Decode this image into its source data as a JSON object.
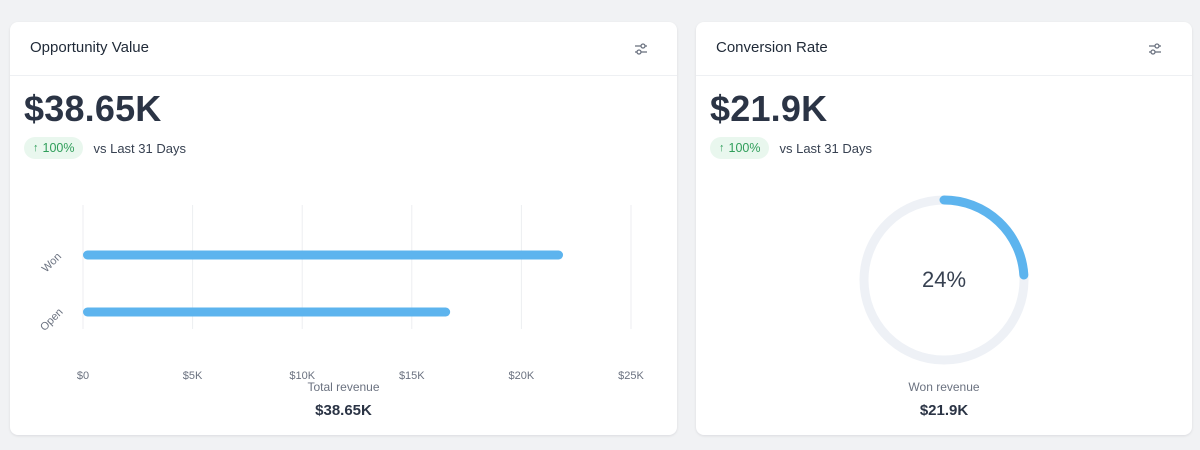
{
  "cards": {
    "opportunity": {
      "title": "Opportunity Value",
      "value": "$38.65K",
      "trend": {
        "arrow": "↑",
        "percent": "100%",
        "label": "vs Last 31 Days"
      },
      "footer_label": "Total revenue",
      "footer_value": "$38.65K"
    },
    "conversion": {
      "title": "Conversion Rate",
      "value": "$21.9K",
      "trend": {
        "arrow": "↑",
        "percent": "100%",
        "label": "vs Last 31 Days"
      },
      "center_label": "24%",
      "footer_label": "Won revenue",
      "footer_value": "$21.9K"
    }
  },
  "icons": {
    "settings": "settings-sliders-icon"
  },
  "colors": {
    "bar": "#5db4ee",
    "donut_track": "#eef1f6",
    "trend_badge_bg": "#e9f7ee",
    "trend_badge_text": "#2f9e5a"
  },
  "chart_data": [
    {
      "type": "bar",
      "orientation": "horizontal",
      "categories": [
        "Won",
        "Open"
      ],
      "values": [
        21900,
        16750
      ],
      "xlim": [
        0,
        25000
      ],
      "x_ticks": [
        "$0",
        "$5K",
        "$10K",
        "$15K",
        "$20K",
        "$25K"
      ],
      "grid": true
    },
    {
      "type": "pie",
      "variant": "donut",
      "value": 0.24,
      "center_label": "24%"
    }
  ]
}
